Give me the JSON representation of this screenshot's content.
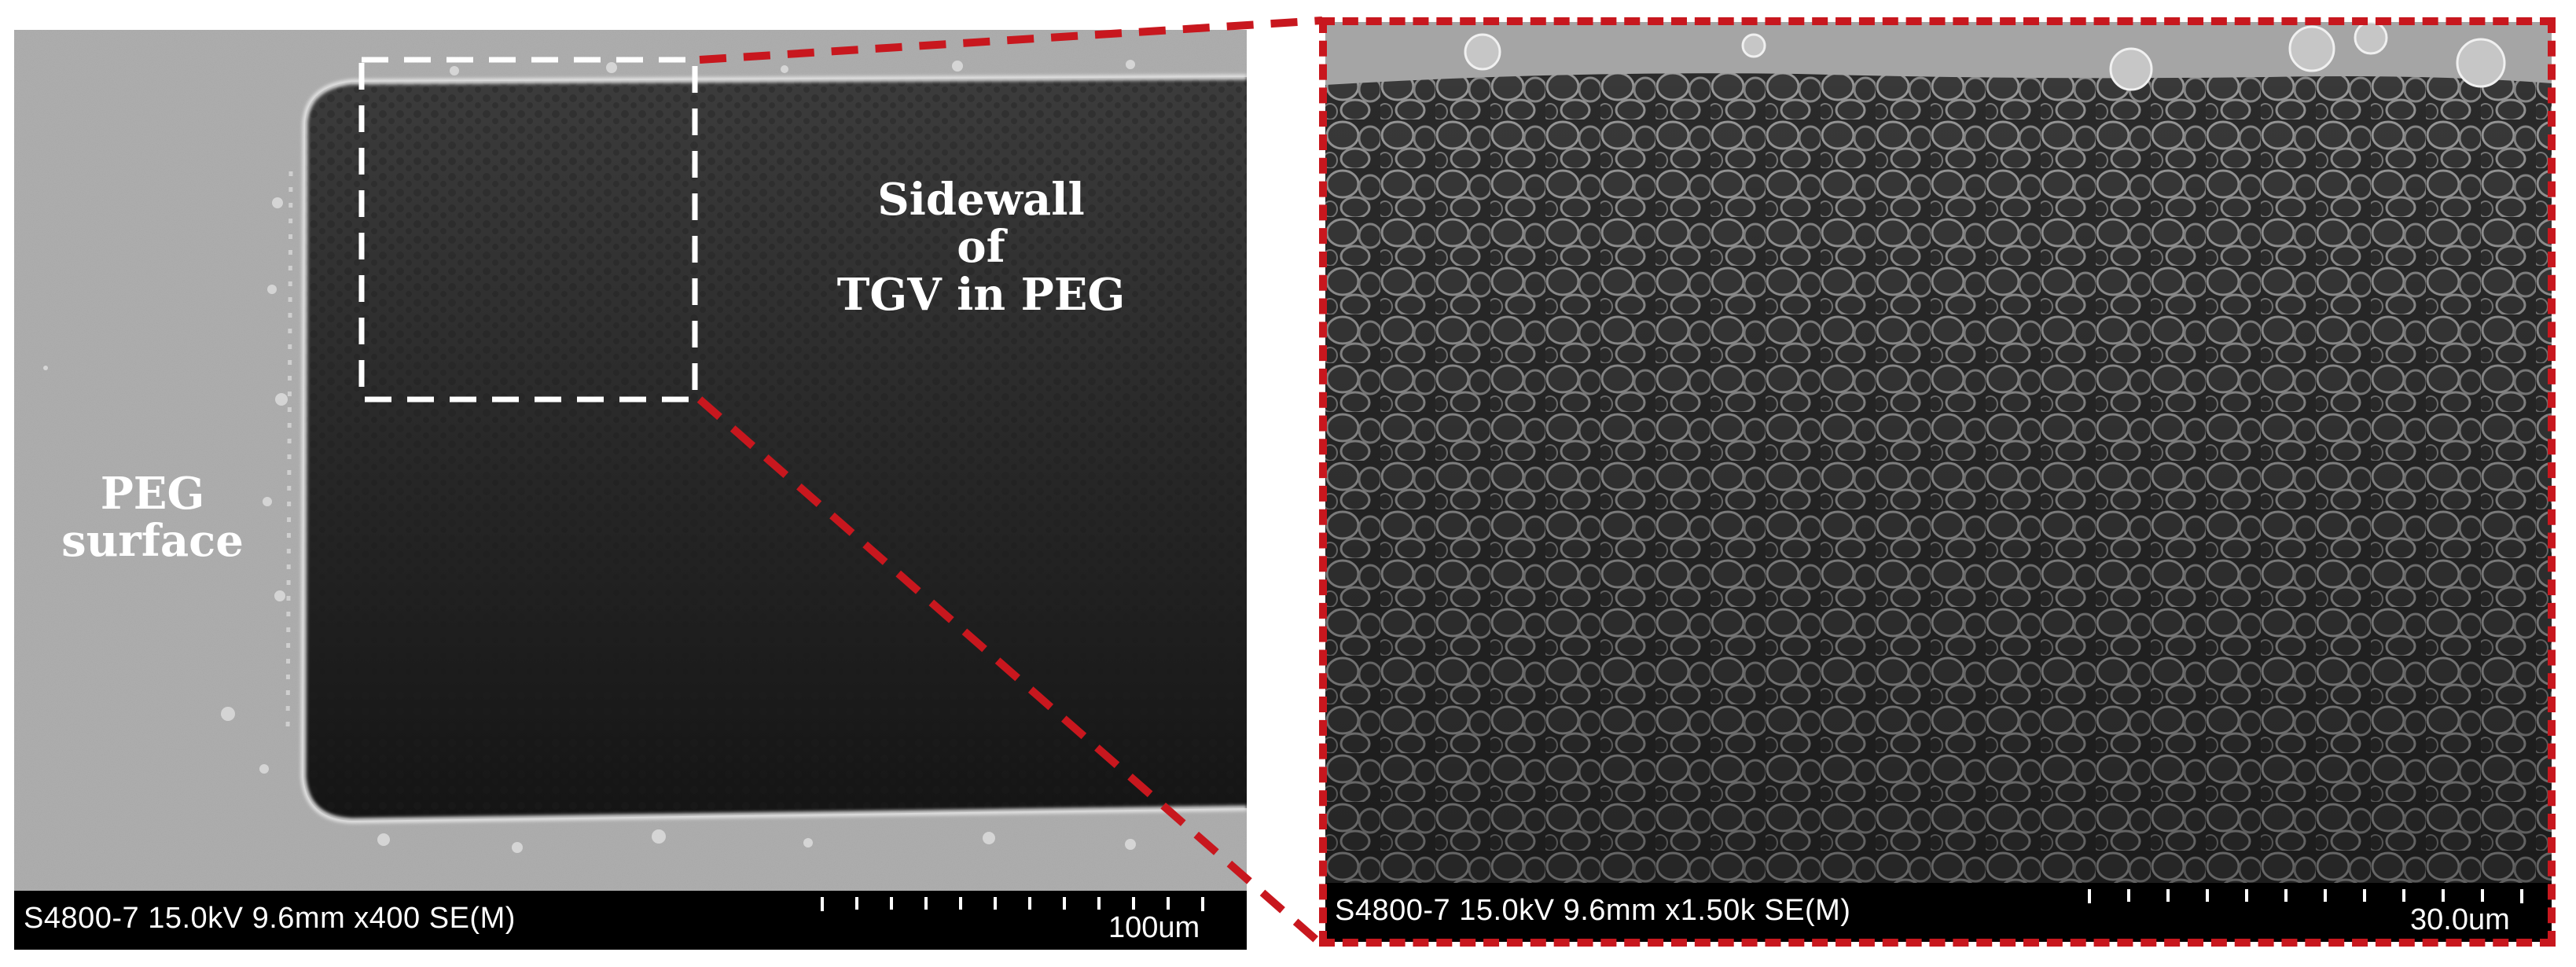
{
  "figure": {
    "left_panel": {
      "label_peg_surface": [
        "PEG",
        "surface"
      ],
      "label_sidewall": [
        "Sidewall",
        "of",
        "TGV in PEG"
      ],
      "info_params": "S4800-7 15.0kV 9.6mm x400 SE(M)",
      "info_scale": "100um"
    },
    "right_panel": {
      "info_params": "S4800-7 15.0kV 9.6mm x1.50k SE(M)",
      "info_scale": "30.0um"
    },
    "colors": {
      "zoom_frame": "#c8171e",
      "selection_box": "#ffffff",
      "info_bar": "#000000"
    }
  }
}
